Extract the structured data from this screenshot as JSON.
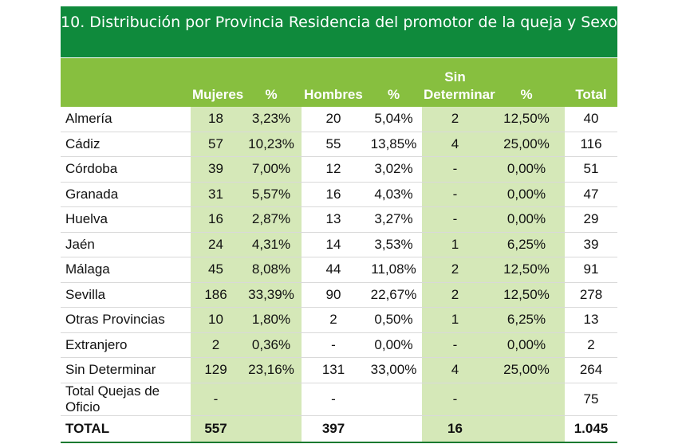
{
  "title": "10. Distribución por Provincia Residencia del promotor de la queja y Sexo",
  "colors": {
    "title_bg": "#0f8a3c",
    "header_bg": "#87bf3f",
    "shade": "#d5e8b8",
    "rule": "#1a7a30"
  },
  "columns": [
    "",
    "Mujeres",
    "%",
    "Hombres",
    "%",
    "Sin Determinar",
    "%",
    "Total"
  ],
  "rows": [
    [
      "Almería",
      "18",
      "3,23%",
      "20",
      "5,04%",
      "2",
      "12,50%",
      "40"
    ],
    [
      "Cádiz",
      "57",
      "10,23%",
      "55",
      "13,85%",
      "4",
      "25,00%",
      "116"
    ],
    [
      "Córdoba",
      "39",
      "7,00%",
      "12",
      "3,02%",
      "-",
      "0,00%",
      "51"
    ],
    [
      "Granada",
      "31",
      "5,57%",
      "16",
      "4,03%",
      "-",
      "0,00%",
      "47"
    ],
    [
      "Huelva",
      "16",
      "2,87%",
      "13",
      "3,27%",
      "-",
      "0,00%",
      "29"
    ],
    [
      "Jaén",
      "24",
      "4,31%",
      "14",
      "3,53%",
      "1",
      "6,25%",
      "39"
    ],
    [
      "Málaga",
      "45",
      "8,08%",
      "44",
      "11,08%",
      "2",
      "12,50%",
      "91"
    ],
    [
      "Sevilla",
      "186",
      "33,39%",
      "90",
      "22,67%",
      "2",
      "12,50%",
      "278"
    ],
    [
      "Otras Provincias",
      "10",
      "1,80%",
      "2",
      "0,50%",
      "1",
      "6,25%",
      "13"
    ],
    [
      "Extranjero",
      "2",
      "0,36%",
      "-",
      "0,00%",
      "-",
      "0,00%",
      "2"
    ],
    [
      "Sin Determinar",
      "129",
      "23,16%",
      "131",
      "33,00%",
      "4",
      "25,00%",
      "264"
    ],
    [
      "Total Quejas de Oficio",
      "-",
      "",
      "-",
      "",
      "-",
      "",
      "75"
    ]
  ],
  "total": [
    "TOTAL",
    "557",
    "",
    "397",
    "",
    "16",
    "",
    "1.045"
  ]
}
